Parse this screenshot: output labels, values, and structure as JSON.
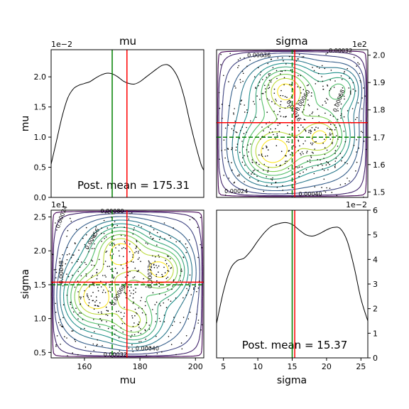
{
  "panels": {
    "mu_marginal": {
      "title": "mu",
      "ylabel": "mu",
      "offset_text": "1e−2",
      "annotation": "Post. mean = 175.31"
    },
    "sigma_mu_joint": {
      "title": "sigma",
      "offset_text": "1e2"
    },
    "mu_sigma_joint": {
      "ylabel": "sigma",
      "xlabel": "mu",
      "offset_text": "1e1"
    },
    "sigma_marginal": {
      "xlabel": "sigma",
      "offset_text": "1e−2",
      "annotation": "Post. mean = 15.37"
    }
  },
  "colors": {
    "density_line": "#000000",
    "posterior_mean": "#ff0000",
    "true_value": "#008000",
    "contour_low": "#440154",
    "contour_high": "#fde725"
  },
  "chart_data": [
    {
      "id": "mu_marginal",
      "type": "line",
      "title": "mu",
      "ylabel": "mu",
      "xlim": [
        148,
        203
      ],
      "ylim": [
        0,
        2.45
      ],
      "y_scale_note": "1e−2",
      "yticks": [
        0.0,
        0.5,
        1.0,
        1.5,
        2.0
      ],
      "ytick_labels": [
        "0.0",
        "0.5",
        "1.0",
        "1.5",
        "2.0"
      ],
      "x": [
        148,
        150,
        152,
        154,
        156,
        158,
        160,
        162,
        164,
        166,
        168,
        170,
        172,
        174,
        176,
        178,
        180,
        182,
        184,
        186,
        188,
        190,
        192,
        194,
        196,
        198,
        200,
        202,
        203
      ],
      "y": [
        0.55,
        0.95,
        1.35,
        1.65,
        1.8,
        1.86,
        1.89,
        1.92,
        1.98,
        2.03,
        2.06,
        2.05,
        2.0,
        1.93,
        1.89,
        1.88,
        1.92,
        1.99,
        2.06,
        2.13,
        2.19,
        2.2,
        2.12,
        1.95,
        1.65,
        1.25,
        0.88,
        0.55,
        0.45
      ],
      "posterior_mean": 175.31,
      "true_value": 170,
      "annotation": "Post. mean = 175.31"
    },
    {
      "id": "sigma_mu_joint",
      "type": "contour",
      "title": "sigma",
      "xlim": [
        4,
        26
      ],
      "ylim": [
        1.48,
        2.02
      ],
      "y_scale_note": "1e2",
      "y_axis_side": "right",
      "yticks": [
        1.5,
        1.6,
        1.7,
        1.8,
        1.9,
        2.0
      ],
      "ytick_labels": [
        "1.5",
        "1.6",
        "1.7",
        "1.8",
        "1.9",
        "2.0"
      ],
      "contour_labels": [
        "0.00036",
        "0.00032",
        "0.00024",
        "0.00040",
        "0.00016",
        "0.00060",
        "0.00068"
      ],
      "posterior_mean": {
        "x": 15.37,
        "y": 1.7531
      },
      "true_value": {
        "x": 15,
        "y": 1.7
      }
    },
    {
      "id": "mu_sigma_joint",
      "type": "contour",
      "ylabel": "sigma",
      "xlabel": "mu",
      "xlim": [
        148,
        203
      ],
      "ylim": [
        0.42,
        2.6
      ],
      "y_scale_note": "1e1",
      "xticks": [
        160,
        180,
        200
      ],
      "xtick_labels": [
        "160",
        "180",
        "200"
      ],
      "yticks": [
        0.5,
        1.0,
        1.5,
        2.0,
        2.5
      ],
      "ytick_labels": [
        "0.5",
        "1.0",
        "1.5",
        "2.0",
        "2.5"
      ],
      "contour_labels": [
        "0.00080",
        "0.00024",
        "0.00048",
        "0.00056",
        "0.00064",
        "0.00072",
        "0.00040",
        "0.00032"
      ],
      "posterior_mean": {
        "x": 175.31,
        "y": 1.537
      },
      "true_value": {
        "x": 170,
        "y": 1.5
      }
    },
    {
      "id": "sigma_marginal",
      "type": "line",
      "xlabel": "sigma",
      "xlim": [
        4,
        26
      ],
      "ylim": [
        0,
        6
      ],
      "y_scale_note": "1e−2",
      "y_axis_side": "right",
      "xticks": [
        5,
        10,
        15,
        20,
        25
      ],
      "xtick_labels": [
        "5",
        "10",
        "15",
        "20",
        "25"
      ],
      "yticks": [
        0,
        1,
        2,
        3,
        4,
        5,
        6
      ],
      "ytick_labels": [
        "0",
        "1",
        "2",
        "3",
        "4",
        "5",
        "6"
      ],
      "x": [
        4,
        5,
        6,
        7,
        8,
        9,
        10,
        11,
        12,
        13,
        14,
        15,
        16,
        17,
        18,
        19,
        20,
        21,
        22,
        23,
        24,
        25,
        26
      ],
      "y": [
        1.4,
        2.7,
        3.6,
        3.95,
        4.05,
        4.35,
        4.75,
        5.1,
        5.35,
        5.45,
        5.5,
        5.42,
        5.2,
        5.0,
        4.95,
        5.05,
        5.2,
        5.3,
        5.25,
        4.75,
        3.7,
        2.4,
        1.5
      ],
      "posterior_mean": 15.37,
      "true_value": 15,
      "annotation": "Post. mean = 15.37"
    }
  ]
}
